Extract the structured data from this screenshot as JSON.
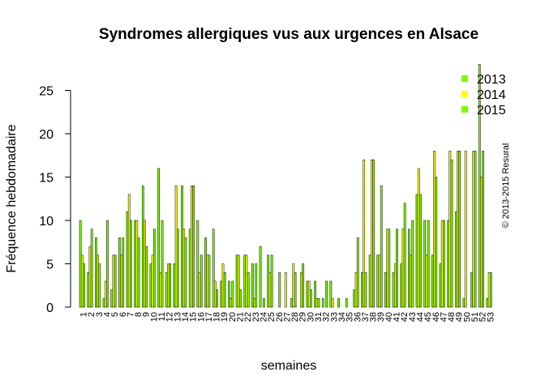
{
  "chart_data": {
    "type": "bar",
    "title": "Syndromes allergiques vus aux urgences en Alsace",
    "xlabel": "semaines",
    "ylabel": "Fréquence hebdomadaire",
    "credit": "© 2013-2015 Resural",
    "ylim": [
      0,
      28
    ],
    "yticks": [
      0,
      5,
      10,
      15,
      20,
      25
    ],
    "grid": false,
    "legend_position": "top-right",
    "categories": [
      "1",
      "2",
      "3",
      "4",
      "5",
      "6",
      "7",
      "8",
      "9",
      "10",
      "11",
      "12",
      "13",
      "14",
      "15",
      "16",
      "17",
      "18",
      "19",
      "20",
      "21",
      "22",
      "23",
      "24",
      "25",
      "26",
      "27",
      "28",
      "29",
      "30",
      "31",
      "32",
      "33",
      "34",
      "35",
      "36",
      "37",
      "38",
      "39",
      "40",
      "41",
      "42",
      "43",
      "44",
      "45",
      "46",
      "47",
      "48",
      "49",
      "50",
      "51",
      "52",
      "53"
    ],
    "series": [
      {
        "name": "2013",
        "color": "#7cfc00",
        "values": [
          10,
          4,
          8,
          1,
          2,
          8,
          11,
          10,
          14,
          5,
          16,
          4,
          5,
          14,
          9,
          10,
          8,
          9,
          3,
          3,
          6,
          6,
          5,
          7,
          6,
          0,
          0,
          1,
          0,
          3,
          3,
          1,
          3,
          1,
          1,
          2,
          4,
          6,
          6,
          4,
          4,
          5,
          9,
          13,
          10,
          6,
          5,
          10,
          11,
          1,
          4,
          28,
          1
        ]
      },
      {
        "name": "2014",
        "color": "#ffff00",
        "values": [
          6,
          7,
          6,
          3,
          6,
          6,
          13,
          10,
          10,
          6,
          4,
          5,
          14,
          9,
          14,
          4,
          6,
          3,
          5,
          1,
          6,
          6,
          1,
          0,
          4,
          0,
          4,
          5,
          4,
          3,
          1,
          0,
          1,
          0,
          0,
          4,
          17,
          17,
          6,
          9,
          5,
          9,
          6,
          16,
          6,
          18,
          10,
          18,
          18,
          18,
          18,
          15,
          4
        ]
      },
      {
        "name": "2015",
        "color": "#7cfc00",
        "values": [
          5,
          9,
          5,
          10,
          6,
          8,
          10,
          8,
          7,
          9,
          10,
          5,
          9,
          8,
          14,
          6,
          6,
          2,
          4,
          3,
          2,
          4,
          5,
          1,
          6,
          4,
          0,
          4,
          5,
          2,
          1,
          3,
          0,
          0,
          0,
          8,
          4,
          17,
          14,
          9,
          9,
          12,
          10,
          13,
          10,
          15,
          10,
          17,
          18,
          0,
          18,
          18,
          4
        ]
      }
    ]
  }
}
